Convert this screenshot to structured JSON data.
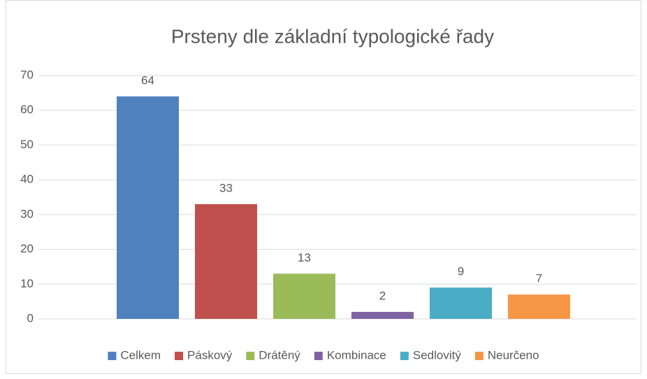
{
  "chart_data": {
    "type": "bar",
    "title": "Prsteny dle základní typologické řady",
    "categories": [
      null
    ],
    "series": [
      {
        "name": "Celkem",
        "color": "#4f81bd",
        "values": [
          64
        ]
      },
      {
        "name": "Páskový",
        "color": "#c0504d",
        "values": [
          33
        ]
      },
      {
        "name": "Drátěný",
        "color": "#9bbb59",
        "values": [
          13
        ]
      },
      {
        "name": "Kombinace",
        "color": "#8064a2",
        "values": [
          2
        ]
      },
      {
        "name": "Sedlovitý",
        "color": "#4bacc6",
        "values": [
          9
        ]
      },
      {
        "name": "Neurčeno",
        "color": "#f79646",
        "values": [
          7
        ]
      }
    ],
    "ylim": [
      0,
      70
    ],
    "yticks": [
      0,
      10,
      20,
      30,
      40,
      50,
      60,
      70
    ],
    "grid": true,
    "legend": "bottom"
  }
}
